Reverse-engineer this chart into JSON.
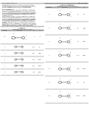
{
  "background_color": "#ffffff",
  "header_left": "US 2012/0259126 A1",
  "header_right": "Oct. 11, 2012",
  "page_num": "11",
  "text_color": "#000000",
  "line_color": "#000000",
  "left_paragraphs": [
    "Condensation products of 2-(3-chlorophenyl)-4-hydroxy-1-",
    "(4-methoxyphenyl)-1H-pyrrole-3-carbaldehyde and similar",
    "related compounds are used as insecticidal agents.",
    "",
    "What is claimed is:",
    "[0001] An insecticidally effective composition comprising",
    "N-heterocyclylphenyl-substituted cyclic ketoenols and at",
    "least one suitable carrier material, wherein the compounds",
    "thereof are (N-heterocyclylphenyl)-substituted ketoenols,",
    "selected from the group consisting of compounds with the",
    "formula I, II or III.",
    "[0002] An insecticidally effective composition comprising",
    "N-heterocyclylphenyl-substituted cyclic ketoenols and at",
    "least one suitable carrier material, wherein the compounds",
    "thereof are (N-heterocyclylphenyl)-substituted ketoenols,",
    "selected from the group consisting of compounds with the",
    "formula I and wherein R1 is as defined therein at position",
    "2,4 or 6.",
    "[0003] Insecticidal compounds of the N-Heterocyclylphenyl-",
    "substituted cyclic ketoenols class, compositions comprising",
    "them and methods for their use to control insect pests."
  ],
  "table2_title": "TABLE 2",
  "table2_subtitle": "Compounds of the present disclosure",
  "table2_continued_title": "TABLE 2-continued",
  "col_headers": [
    "Compound",
    "Structure",
    "R1",
    "R2"
  ],
  "left_rows": [
    [
      "1-1",
      "2,3-Cl2",
      "CH3"
    ],
    [
      "1-2",
      "4-Cl",
      "C2H5"
    ],
    [
      "1-3",
      "3,4-Cl2",
      "n-C3H7"
    ],
    [
      "1-4",
      "2,4-Cl2",
      "i-C3H7"
    ],
    [
      "1-5",
      "3-CF3",
      "n-C4H9"
    ]
  ],
  "right_rows": [
    [
      "1-6",
      "2-Cl",
      "CH3"
    ],
    [
      "1-7",
      "4-F",
      "C2H5"
    ],
    [
      "1-8",
      "3-Cl",
      "n-C3H7"
    ],
    [
      "1-9",
      "2,6-Cl2",
      "i-C3H7"
    ],
    [
      "1-10",
      "4-CF3",
      "n-C4H9"
    ],
    [
      "1-11",
      "3-Br",
      "CH3"
    ],
    [
      "1-12",
      "phenyl",
      "C2H5"
    ]
  ]
}
